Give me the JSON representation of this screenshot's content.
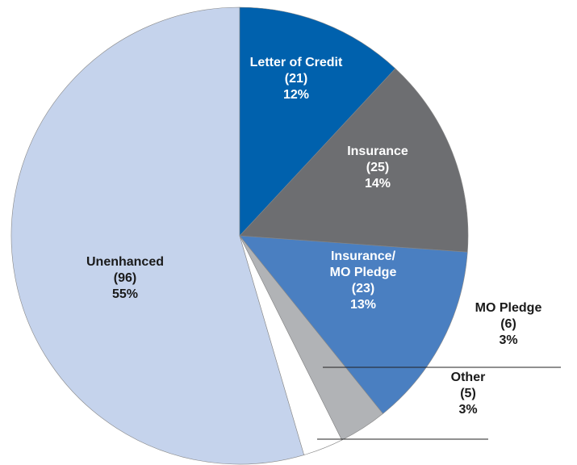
{
  "chart_data": {
    "type": "pie",
    "categories": [
      "Letter of Credit",
      "Insurance",
      "Insurance/ MO Pledge",
      "MO Pledge",
      "Other",
      "Unenhanced"
    ],
    "counts": [
      21,
      25,
      23,
      6,
      5,
      96
    ],
    "count_labels": [
      "(21)",
      "(25)",
      "(23)",
      "(6)",
      "(5)",
      "(96)"
    ],
    "values": [
      12,
      14,
      13,
      3,
      3,
      55
    ],
    "value_labels": [
      "12%",
      "14%",
      "13%",
      "3%",
      "3%",
      "55%"
    ],
    "colors": [
      "#0061ad",
      "#6d6e71",
      "#4a7fc1",
      "#b1b3b6",
      "#ffffff",
      "#c5d3ec"
    ]
  }
}
